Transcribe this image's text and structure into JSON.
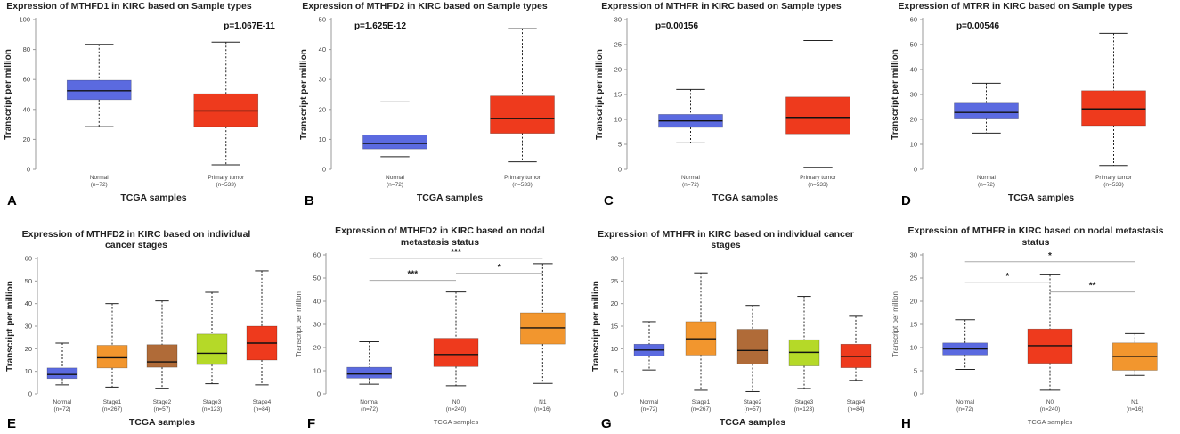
{
  "chart_data": [
    {
      "type": "boxplot",
      "panel": "A",
      "title": [
        "Expression of MTHFD1 in KIRC based on Sample types"
      ],
      "ylabel": "Transcript per million",
      "xlabel": "TCGA samples",
      "ylim": [
        0,
        100
      ],
      "yticks": [
        0,
        20,
        40,
        60,
        80,
        100
      ],
      "pvalue": "p=1.067E-11",
      "categories": [
        "Normal",
        "Primary tumor"
      ],
      "counts": [
        "(n=72)",
        "(n=533)"
      ],
      "colors": [
        "#5b6ae0",
        "#ee3a1d"
      ],
      "boxes": [
        {
          "min": 28.5,
          "q1": 46.5,
          "median": 52.5,
          "q3": 59.5,
          "max": 83.5
        },
        {
          "min": 3,
          "q1": 28.5,
          "median": 39,
          "q3": 50.5,
          "max": 85
        }
      ]
    },
    {
      "type": "boxplot",
      "panel": "B",
      "title": [
        "Expression of MTHFD2 in KIRC based on Sample types"
      ],
      "ylabel": "Transcript per million",
      "xlabel": "TCGA samples",
      "ylim": [
        0,
        50
      ],
      "yticks": [
        0,
        10,
        20,
        30,
        40,
        50
      ],
      "pvalue": "p=1.625E-12",
      "categories": [
        "Normal",
        "Primary tumor"
      ],
      "counts": [
        "(n=72)",
        "(n=533)"
      ],
      "colors": [
        "#5b6ae0",
        "#ee3a1d"
      ],
      "boxes": [
        {
          "min": 4.2,
          "q1": 6.8,
          "median": 8.6,
          "q3": 11.5,
          "max": 22.5
        },
        {
          "min": 2.5,
          "q1": 12,
          "median": 17,
          "q3": 24.5,
          "max": 47
        }
      ]
    },
    {
      "type": "boxplot",
      "panel": "C",
      "title": [
        "Expression of MTHFR in KIRC based on Sample types"
      ],
      "ylabel": "Transcript per million",
      "xlabel": "TCGA samples",
      "ylim": [
        0,
        30
      ],
      "yticks": [
        0,
        5,
        10,
        15,
        20,
        25,
        30
      ],
      "pvalue": "p=0.00156",
      "categories": [
        "Normal",
        "Primary tumor"
      ],
      "counts": [
        "(n=72)",
        "(n=533)"
      ],
      "colors": [
        "#5b6ae0",
        "#ee3a1d"
      ],
      "boxes": [
        {
          "min": 5.3,
          "q1": 8.4,
          "median": 9.7,
          "q3": 11,
          "max": 16
        },
        {
          "min": 0.4,
          "q1": 7.1,
          "median": 10.4,
          "q3": 14.5,
          "max": 25.8
        }
      ]
    },
    {
      "type": "boxplot",
      "panel": "D",
      "title": [
        "Expression of MTRR in KIRC based on Sample types"
      ],
      "ylabel": "Transcript per million",
      "xlabel": "TCGA samples",
      "ylim": [
        0,
        60
      ],
      "yticks": [
        0,
        10,
        20,
        30,
        40,
        50,
        60
      ],
      "pvalue": "p=0.00546",
      "categories": [
        "Normal",
        "Primary tumor"
      ],
      "counts": [
        "(n=72)",
        "(n=533)"
      ],
      "colors": [
        "#5b6ae0",
        "#ee3a1d"
      ],
      "boxes": [
        {
          "min": 14.5,
          "q1": 20.5,
          "median": 22.8,
          "q3": 26.5,
          "max": 34.5
        },
        {
          "min": 1.5,
          "q1": 17.5,
          "median": 24.2,
          "q3": 31.5,
          "max": 54.5
        }
      ]
    },
    {
      "type": "boxplot",
      "panel": "E",
      "title": [
        "Expression of MTHFD2 in KIRC based on individual",
        "cancer stages"
      ],
      "ylabel": "Transcript per million",
      "xlabel": "TCGA samples",
      "ylim": [
        0,
        60
      ],
      "yticks": [
        0,
        10,
        20,
        30,
        40,
        50,
        60
      ],
      "categories": [
        "Normal",
        "Stage1",
        "Stage2",
        "Stage3",
        "Stage4"
      ],
      "counts": [
        "(n=72)",
        "(n=267)",
        "(n=57)",
        "(n=123)",
        "(n=84)"
      ],
      "colors": [
        "#5b6ae0",
        "#f2962e",
        "#b06b38",
        "#b5d928",
        "#ee3a1d"
      ],
      "boxes": [
        {
          "min": 4,
          "q1": 6.8,
          "median": 8.6,
          "q3": 11.5,
          "max": 22.5
        },
        {
          "min": 3,
          "q1": 11.5,
          "median": 16,
          "q3": 21.5,
          "max": 40
        },
        {
          "min": 2.5,
          "q1": 11.8,
          "median": 14.2,
          "q3": 21.8,
          "max": 41.2
        },
        {
          "min": 4.5,
          "q1": 13,
          "median": 18,
          "q3": 26.5,
          "max": 45
        },
        {
          "min": 4,
          "q1": 15,
          "median": 22.5,
          "q3": 30,
          "max": 54.5
        }
      ]
    },
    {
      "type": "boxplot",
      "panel": "F",
      "title": [
        "Expression of MTHFD2 in KIRC based on nodal",
        "metastasis status"
      ],
      "ylabel": "Transcript per million",
      "xlabel": "TCGA samples",
      "ylim": [
        0,
        60
      ],
      "yticks": [
        0,
        10,
        20,
        30,
        40,
        50,
        60
      ],
      "categories": [
        "Normal",
        "N0",
        "N1"
      ],
      "counts": [
        "(n=72)",
        "(n=240)",
        "(n=16)"
      ],
      "colors": [
        "#5b6ae0",
        "#ee3a1d",
        "#f2962e"
      ],
      "boxes": [
        {
          "min": 4.2,
          "q1": 6.8,
          "median": 8.6,
          "q3": 11.5,
          "max": 22.5
        },
        {
          "min": 3.5,
          "q1": 11.8,
          "median": 17,
          "q3": 24,
          "max": 44
        },
        {
          "min": 4.5,
          "q1": 21.5,
          "median": 28.5,
          "q3": 35,
          "max": 56.2
        }
      ],
      "significance": [
        {
          "from": 0,
          "to": 1,
          "label": "***",
          "y": 49
        },
        {
          "from": 1,
          "to": 2,
          "label": "*",
          "y": 52
        },
        {
          "from": 0,
          "to": 2,
          "label": "***",
          "y": 58.5
        }
      ]
    },
    {
      "type": "boxplot",
      "panel": "G",
      "title": [
        "Expression of MTHFR in KIRC based on individual cancer",
        "stages"
      ],
      "ylabel": "Transcript per million",
      "xlabel": "TCGA samples",
      "ylim": [
        0,
        30
      ],
      "yticks": [
        0,
        5,
        10,
        15,
        20,
        25,
        30
      ],
      "categories": [
        "Normal",
        "Stage1",
        "Stage2",
        "Stage3",
        "Stage4"
      ],
      "counts": [
        "(n=72)",
        "(n=267)",
        "(n=57)",
        "(n=123)",
        "(n=84)"
      ],
      "colors": [
        "#5b6ae0",
        "#f2962e",
        "#b06b38",
        "#b5d928",
        "#ee3a1d"
      ],
      "boxes": [
        {
          "min": 5.3,
          "q1": 8.4,
          "median": 9.7,
          "q3": 11,
          "max": 16
        },
        {
          "min": 0.8,
          "q1": 8.6,
          "median": 12.2,
          "q3": 16,
          "max": 26.8
        },
        {
          "min": 0.5,
          "q1": 6.6,
          "median": 9.6,
          "q3": 14.3,
          "max": 19.6
        },
        {
          "min": 1.2,
          "q1": 6.2,
          "median": 9.2,
          "q3": 12,
          "max": 21.6
        },
        {
          "min": 3,
          "q1": 5.8,
          "median": 8.3,
          "q3": 11,
          "max": 17.2
        }
      ]
    },
    {
      "type": "boxplot",
      "panel": "H",
      "title": [
        "Expression of MTHFR in KIRC based on nodal metastasis",
        "status"
      ],
      "ylabel": "Transcript per million",
      "xlabel": "TCGA samples",
      "ylim": [
        0,
        30
      ],
      "yticks": [
        0,
        5,
        10,
        15,
        20,
        25,
        30
      ],
      "categories": [
        "Normal",
        "N0",
        "N1"
      ],
      "counts": [
        "(n=72)",
        "(n=240)",
        "(n=16)"
      ],
      "colors": [
        "#5b6ae0",
        "#ee3a1d",
        "#f2962e"
      ],
      "boxes": [
        {
          "min": 5.3,
          "q1": 8.4,
          "median": 9.7,
          "q3": 11,
          "max": 16
        },
        {
          "min": 0.8,
          "q1": 6.6,
          "median": 10.4,
          "q3": 14,
          "max": 25.7
        },
        {
          "min": 4,
          "q1": 5.1,
          "median": 8.1,
          "q3": 11,
          "max": 13
        }
      ],
      "significance": [
        {
          "from": 0,
          "to": 1,
          "label": "*",
          "y": 24
        },
        {
          "from": 1,
          "to": 2,
          "label": "**",
          "y": 22
        },
        {
          "from": 0,
          "to": 2,
          "label": "*",
          "y": 28.5
        }
      ]
    }
  ]
}
